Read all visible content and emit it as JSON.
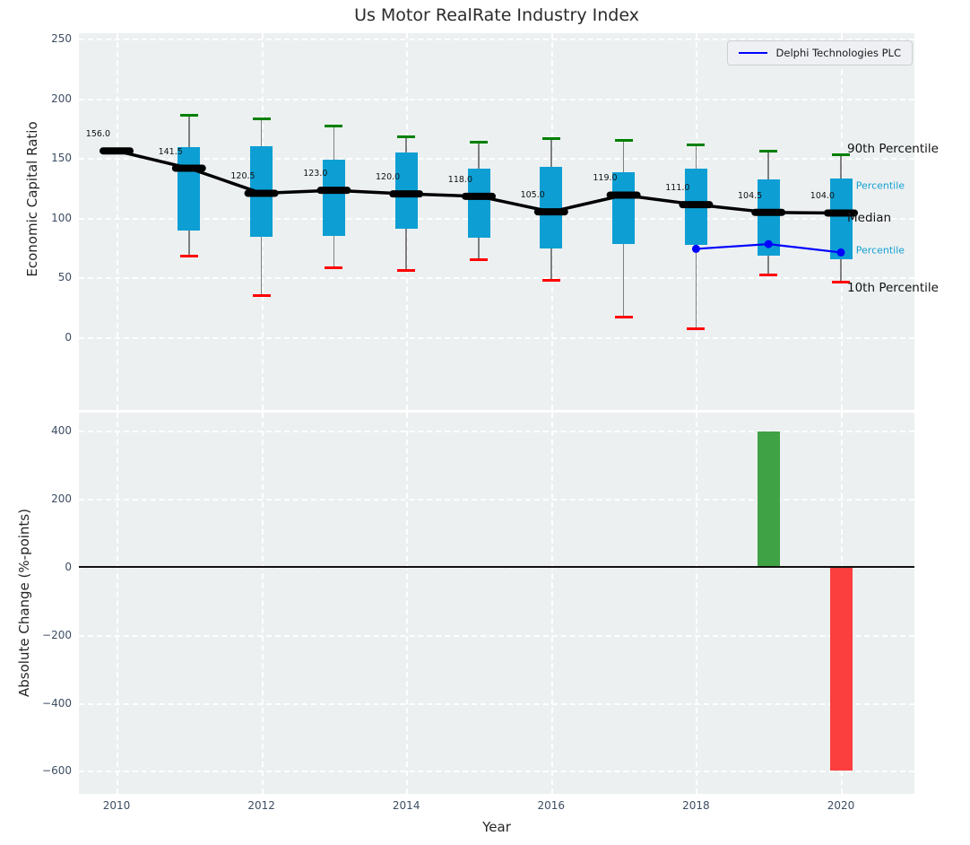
{
  "title": "Us Motor RealRate Industry Index",
  "colors": {
    "box_fill": "#0d9fd4",
    "cap_90th": "#008000",
    "cap_10th": "#ff0000",
    "median_line": "#000000",
    "delphi_line": "#0000ff",
    "bar_positive": "#3fa244",
    "bar_negative": "#fb3e3e",
    "whisker": "#7f7f7f",
    "axes_background": "#ecf0f1",
    "grid": "#ffffff",
    "tick_text": "#3d4d63",
    "percentile_label_cyan": "#14a0d4"
  },
  "legend": {
    "label": "Delphi Technologies PLC",
    "position": "upper right"
  },
  "chart_data": [
    {
      "type": "boxplot+line",
      "title": "Us Motor RealRate Industry Index",
      "ylabel": "Economic Capital Ratio",
      "x": [
        2010,
        2011,
        2012,
        2013,
        2014,
        2015,
        2016,
        2017,
        2018,
        2019,
        2020
      ],
      "series": [
        {
          "name": "Median",
          "values": [
            156.0,
            141.5,
            120.5,
            123.0,
            120.0,
            118.0,
            105.0,
            119.0,
            111.0,
            104.5,
            104.0
          ]
        },
        {
          "name": "90th Percentile",
          "values": [
            null,
            186,
            183,
            177,
            168,
            163,
            166,
            165,
            161,
            156,
            153
          ]
        },
        {
          "name": "75th Percentile",
          "values": [
            null,
            159,
            160,
            149,
            155,
            141,
            143,
            138,
            141,
            132,
            133
          ]
        },
        {
          "name": "25th Percentile",
          "values": [
            null,
            89,
            84,
            85,
            91,
            83,
            74,
            78,
            77,
            68,
            65
          ]
        },
        {
          "name": "10th Percentile",
          "values": [
            null,
            68,
            35,
            58,
            56,
            65,
            48,
            17,
            7,
            52,
            46
          ]
        },
        {
          "name": "Delphi Technologies PLC",
          "x": [
            2018,
            2019,
            2020
          ],
          "values": [
            74,
            78,
            71
          ]
        }
      ],
      "median_annotations": [
        "156.0",
        "141.5",
        "120.5",
        "123.0",
        "120.0",
        "118.0",
        "105.0",
        "119.0",
        "111.0",
        "104.5",
        "104.0"
      ],
      "right_labels": [
        {
          "text": "90th Percentile",
          "value": 158,
          "style": "black-lg"
        },
        {
          "text": "75th Percentile",
          "value": 127,
          "style": "cyan-sm"
        },
        {
          "text": "Median",
          "value": 100,
          "style": "black-lg"
        },
        {
          "text": "25th Percentile",
          "value": 73,
          "style": "cyan-sm"
        },
        {
          "text": "10th Percentile",
          "value": 41,
          "style": "black-lg"
        }
      ],
      "ytick_labels": [
        "250",
        "200",
        "150",
        "100",
        "50",
        "0"
      ],
      "ytick_values": [
        250,
        200,
        150,
        100,
        50,
        0
      ],
      "ylim": [
        -60,
        255
      ],
      "grid": true,
      "legend_position": "upper right"
    },
    {
      "type": "bar",
      "ylabel": "Absolute Change (%-points)",
      "xlabel": "Year",
      "categories": [
        2019,
        2020
      ],
      "values": [
        398,
        -598
      ],
      "bar_colors": [
        "#3fa244",
        "#fb3e3e"
      ],
      "ytick_labels": [
        "400",
        "200",
        "0",
        "−200",
        "−400",
        "−600"
      ],
      "ytick_values": [
        400,
        200,
        0,
        -200,
        -400,
        -600
      ],
      "xtick_labels": [
        "2010",
        "2012",
        "2014",
        "2016",
        "2018",
        "2020"
      ],
      "xtick_values": [
        2010,
        2012,
        2014,
        2016,
        2018,
        2020
      ],
      "ylim": [
        -665,
        452
      ],
      "xlim": [
        2009.48,
        2021.02
      ],
      "zero_line": true,
      "grid": true
    }
  ]
}
